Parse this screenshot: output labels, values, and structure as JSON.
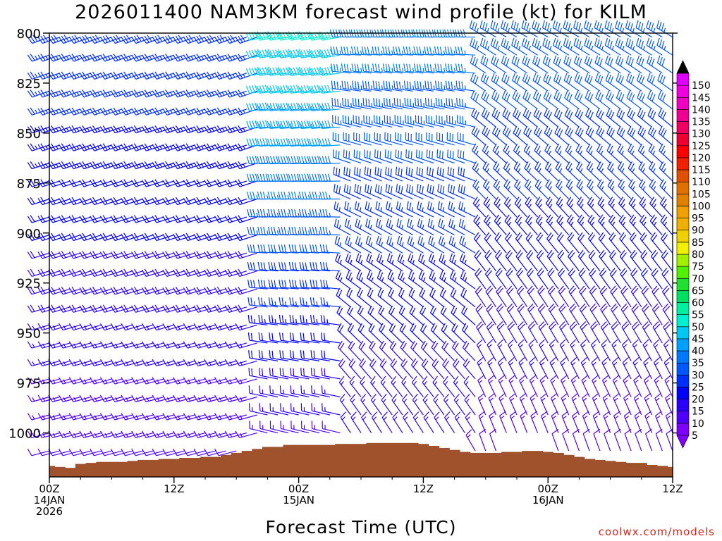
{
  "title": "2026011400 NAM3KM forecast wind profile (kt) for KILM",
  "x_axis_title": "Forecast Time (UTC)",
  "credit": "coolwx.com/models",
  "chart_data": {
    "type": "wind-barb time-height profile",
    "title": "2026011400 NAM3KM forecast wind profile (kt) for KILM",
    "xlabel": "Forecast Time (UTC)",
    "ylabel": "",
    "x_range_hours": [
      0,
      60
    ],
    "y_range_hpa": [
      800,
      1022
    ],
    "y_ticks": [
      {
        "value": 800,
        "label": "800"
      },
      {
        "value": 825,
        "label": "825"
      },
      {
        "value": 850,
        "label": "850"
      },
      {
        "value": 875,
        "label": "875"
      },
      {
        "value": 900,
        "label": "900"
      },
      {
        "value": 925,
        "label": "925"
      },
      {
        "value": 950,
        "label": "950"
      },
      {
        "value": 975,
        "label": "975"
      },
      {
        "value": 1000,
        "label": "1000"
      }
    ],
    "x_ticks": [
      {
        "hour": 0,
        "lines": [
          "00Z",
          "14JAN",
          "2026"
        ]
      },
      {
        "hour": 12,
        "lines": [
          "12Z"
        ]
      },
      {
        "hour": 24,
        "lines": [
          "00Z",
          "15JAN"
        ]
      },
      {
        "hour": 36,
        "lines": [
          "12Z"
        ]
      },
      {
        "hour": 48,
        "lines": [
          "00Z",
          "16JAN"
        ]
      },
      {
        "hour": 60,
        "lines": [
          "12Z"
        ]
      }
    ],
    "surface_pressure_hpa": [
      1016.5,
      1017.0,
      1017.5,
      1015.5,
      1015.0,
      1014.5,
      1014.5,
      1014.5,
      1014.0,
      1013.5,
      1013.5,
      1013.0,
      1013.0,
      1012.5,
      1012.5,
      1012.0,
      1012.0,
      1011.0,
      1010.0,
      1009.0,
      1008.0,
      1007.0,
      1007.0,
      1006.0,
      1006.0,
      1006.0,
      1006.0,
      1006.0,
      1005.5,
      1005.5,
      1005.5,
      1005.0,
      1005.0,
      1005.0,
      1005.0,
      1005.0,
      1005.5,
      1006.5,
      1007.5,
      1008.5,
      1009.5,
      1010.0,
      1010.0,
      1010.0,
      1009.5,
      1009.5,
      1009.0,
      1009.0,
      1009.5,
      1010.0,
      1011.0,
      1012.0,
      1013.0,
      1013.5,
      1014.0,
      1014.5,
      1015.0,
      1015.0,
      1016.0,
      1016.5,
      1017.0
    ],
    "pressure_levels_hpa": [
      802,
      811,
      820,
      829,
      838,
      847,
      856,
      865,
      874,
      883,
      892,
      901,
      910,
      919,
      928,
      937,
      946,
      955,
      964,
      973,
      982,
      991,
      1000,
      1009,
      1018
    ],
    "colorbar": {
      "levels": [
        5,
        10,
        15,
        20,
        25,
        30,
        35,
        40,
        45,
        50,
        55,
        60,
        65,
        70,
        75,
        80,
        85,
        90,
        95,
        100,
        105,
        110,
        115,
        120,
        125,
        130,
        135,
        140,
        145,
        150
      ],
      "colors": [
        "#7f00ff",
        "#4f00ff",
        "#2a00ff",
        "#0000ff",
        "#0030ff",
        "#0058ff",
        "#0078ff",
        "#00a0ff",
        "#00c8f0",
        "#00f0d0",
        "#00f0a0",
        "#00e060",
        "#20e030",
        "#50f000",
        "#a0f000",
        "#f0f000",
        "#f0d000",
        "#f0b000",
        "#f0a000",
        "#e08000",
        "#e07000",
        "#e05000",
        "#f02000",
        "#ff0000",
        "#f00030",
        "#f00060",
        "#f00090",
        "#f000c0",
        "#f000e0",
        "#e000ff"
      ],
      "labels": [
        "5",
        "10",
        "15",
        "20",
        "25",
        "30",
        "35",
        "40",
        "45",
        "50",
        "55",
        "60",
        "65",
        "70",
        "75",
        "80",
        "85",
        "90",
        "95",
        "100",
        "105",
        "110",
        "115",
        "120",
        "125",
        "130",
        "135",
        "140",
        "145",
        "150"
      ]
    },
    "wind_field_model": {
      "description": "approx. direction (deg, from) and speed (kt) by time period and pressure",
      "periods": [
        {
          "hours": [
            0,
            20
          ],
          "dir_top": 250,
          "dir_bottom": 255,
          "spd_top": 28,
          "spd_bottom": 12
        },
        {
          "hours": [
            21,
            28
          ],
          "dir_top": 260,
          "dir_bottom": 285,
          "spd_top": 52,
          "spd_bottom": 12
        },
        {
          "hours": [
            29,
            41
          ],
          "dir_top": 270,
          "dir_bottom": 330,
          "spd_top": 38,
          "spd_bottom": 14
        },
        {
          "hours": [
            42,
            60
          ],
          "dir_top": 300,
          "dir_bottom": 340,
          "spd_top": 34,
          "spd_bottom": 12
        }
      ]
    }
  }
}
